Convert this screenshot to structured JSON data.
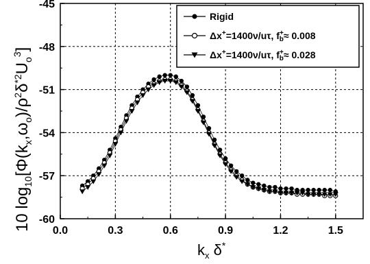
{
  "chart_data": {
    "type": "scatter",
    "xlabel": {
      "main": "k",
      "sub": "x",
      "rest": " δ",
      "sup": "*"
    },
    "ylabel": {
      "pre": "10 log",
      "sub1": "10",
      "mid": "[Φ(k",
      "sub2": "x",
      "mid2": ",ω",
      "sub3": "o",
      "mid3": ")/ρ",
      "sup1": "2",
      "mid4": "δ",
      "sup2": "*2",
      "mid5": "U",
      "sub4": "o",
      "sup3": "3",
      "post": "]"
    },
    "xlim": [
      0.0,
      1.65
    ],
    "ylim": [
      -60,
      -45
    ],
    "xticks": [
      "0.0",
      "0.3",
      "0.6",
      "0.9",
      "1.2",
      "1.5"
    ],
    "xtick_values": [
      0.0,
      0.3,
      0.6,
      0.9,
      1.2,
      1.5
    ],
    "yticks": [
      "-45",
      "-48",
      "-51",
      "-54",
      "-57",
      "-60"
    ],
    "ytick_values": [
      -45,
      -48,
      -51,
      -54,
      -57,
      -60
    ],
    "grid": true,
    "legend_position": "top-right",
    "series": [
      {
        "name": "Rigid",
        "legend": {
          "pre": "Rigid"
        },
        "marker": "circle-filled",
        "color": "#000000",
        "x": [
          0.12,
          0.15,
          0.18,
          0.21,
          0.24,
          0.27,
          0.3,
          0.33,
          0.36,
          0.39,
          0.42,
          0.45,
          0.48,
          0.51,
          0.54,
          0.57,
          0.6,
          0.63,
          0.66,
          0.69,
          0.72,
          0.75,
          0.78,
          0.81,
          0.84,
          0.87,
          0.9,
          0.93,
          0.96,
          0.99,
          1.02,
          1.05,
          1.08,
          1.11,
          1.14,
          1.17,
          1.2,
          1.23,
          1.26,
          1.29,
          1.32,
          1.35,
          1.38,
          1.41,
          1.44,
          1.47,
          1.5
        ],
        "y": [
          -57.7,
          -57.4,
          -57.0,
          -56.5,
          -55.9,
          -55.2,
          -54.4,
          -53.6,
          -52.8,
          -52.1,
          -51.5,
          -51.0,
          -50.6,
          -50.3,
          -50.1,
          -50.0,
          -50.0,
          -50.1,
          -50.4,
          -50.8,
          -51.4,
          -52.1,
          -52.9,
          -53.7,
          -54.5,
          -55.2,
          -55.8,
          -56.3,
          -56.7,
          -57.0,
          -57.3,
          -57.5,
          -57.6,
          -57.7,
          -57.8,
          -57.8,
          -57.9,
          -57.9,
          -57.9,
          -58.0,
          -58.0,
          -58.0,
          -58.0,
          -58.0,
          -58.0,
          -58.0,
          -58.1
        ]
      },
      {
        "name": "Δx+=1400ν/uτ, fb+≈0.008",
        "legend": {
          "pre": "Δx",
          "sup": "+",
          "mid": "=1400ν/uτ,  f",
          "sup2": "+",
          "sub2": "b",
          "post": "≈ 0.008"
        },
        "marker": "circle-open",
        "color": "#000000",
        "x": [
          0.12,
          0.15,
          0.18,
          0.21,
          0.24,
          0.27,
          0.3,
          0.33,
          0.36,
          0.39,
          0.42,
          0.45,
          0.48,
          0.51,
          0.54,
          0.57,
          0.6,
          0.63,
          0.66,
          0.69,
          0.72,
          0.75,
          0.78,
          0.81,
          0.84,
          0.87,
          0.9,
          0.93,
          0.96,
          0.99,
          1.02,
          1.05,
          1.08,
          1.11,
          1.14,
          1.17,
          1.2,
          1.23,
          1.26,
          1.29,
          1.32,
          1.35,
          1.38,
          1.41,
          1.44,
          1.47,
          1.5
        ],
        "y": [
          -57.9,
          -57.6,
          -57.2,
          -56.7,
          -56.1,
          -55.4,
          -54.6,
          -53.8,
          -53.0,
          -52.3,
          -51.7,
          -51.2,
          -50.8,
          -50.6,
          -50.4,
          -50.3,
          -50.3,
          -50.4,
          -50.7,
          -51.1,
          -51.7,
          -52.4,
          -53.2,
          -54.0,
          -54.8,
          -55.5,
          -56.1,
          -56.6,
          -57.0,
          -57.3,
          -57.6,
          -57.8,
          -57.9,
          -58.0,
          -58.1,
          -58.1,
          -58.2,
          -58.2,
          -58.2,
          -58.3,
          -58.3,
          -58.3,
          -58.3,
          -58.3,
          -58.4,
          -58.4,
          -58.4
        ]
      },
      {
        "name": "Δx+=1400ν/uτ, fb+≈0.028",
        "legend": {
          "pre": "Δx",
          "sup": "+",
          "mid": "=1400ν/uτ,  f",
          "sup2": "+",
          "sub2": "b",
          "post": "≈ 0.028"
        },
        "marker": "triangle-down-filled",
        "color": "#000000",
        "x": [
          0.12,
          0.15,
          0.18,
          0.21,
          0.24,
          0.27,
          0.3,
          0.33,
          0.36,
          0.39,
          0.42,
          0.45,
          0.48,
          0.51,
          0.54,
          0.57,
          0.6,
          0.63,
          0.66,
          0.69,
          0.72,
          0.75,
          0.78,
          0.81,
          0.84,
          0.87,
          0.9,
          0.93,
          0.96,
          0.99,
          1.02,
          1.05,
          1.08,
          1.11,
          1.14,
          1.17,
          1.2,
          1.23,
          1.26,
          1.29,
          1.32,
          1.35,
          1.38,
          1.41,
          1.44,
          1.47,
          1.5
        ],
        "y": [
          -58.1,
          -57.8,
          -57.4,
          -56.9,
          -56.3,
          -55.6,
          -54.8,
          -54.0,
          -53.2,
          -52.5,
          -51.9,
          -51.4,
          -51.0,
          -50.7,
          -50.5,
          -50.4,
          -50.4,
          -50.5,
          -50.8,
          -51.2,
          -51.8,
          -52.5,
          -53.3,
          -54.1,
          -54.9,
          -55.6,
          -56.2,
          -56.7,
          -57.1,
          -57.4,
          -57.6,
          -57.8,
          -57.9,
          -58.0,
          -58.1,
          -58.1,
          -58.2,
          -58.2,
          -58.2,
          -58.2,
          -58.2,
          -58.3,
          -58.3,
          -58.3,
          -58.3,
          -58.3,
          -58.3
        ]
      }
    ]
  }
}
